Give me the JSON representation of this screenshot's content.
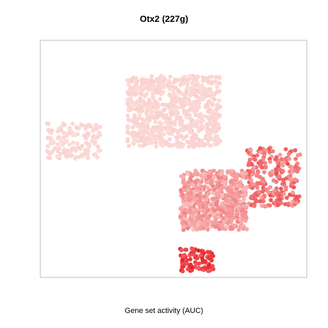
{
  "chart_data": {
    "type": "scatter",
    "title": "Otx2 (227g)",
    "xlabel": "Gene set activity (AUC)",
    "ylabel": "",
    "grid": false,
    "legend": "none",
    "colors": {
      "low": "#fbe0dc",
      "mid": "#f7a5a0",
      "high": "#e8141a",
      "frame": "#bdbdbd"
    },
    "color_scale": {
      "metric": "AUC",
      "low_color": "#fbe0dc",
      "high_color": "#e8141a",
      "range": [
        0,
        1
      ]
    },
    "note_points": "tSNE embedding; each point is a cell shaded by AUC",
    "clusters": [
      {
        "name": "upper-mass",
        "x": [
          -0.35,
          0.35
        ],
        "y": [
          0.1,
          0.7
        ],
        "auc": [
          0.02,
          0.08
        ]
      },
      {
        "name": "right-arm",
        "x": [
          0.55,
          0.95
        ],
        "y": [
          -0.4,
          0.1
        ],
        "auc": [
          0.3,
          0.7
        ]
      },
      {
        "name": "central-lobe",
        "x": [
          0.05,
          0.55
        ],
        "y": [
          -0.6,
          -0.1
        ],
        "auc": [
          0.15,
          0.45
        ]
      },
      {
        "name": "left-edge",
        "x": [
          -0.95,
          -0.55
        ],
        "y": [
          0.0,
          0.3
        ],
        "auc": [
          0.02,
          0.06
        ]
      },
      {
        "name": "bottom-tail",
        "x": [
          0.05,
          0.3
        ],
        "y": [
          -0.95,
          -0.75
        ],
        "auc": [
          0.6,
          0.95
        ]
      }
    ]
  }
}
